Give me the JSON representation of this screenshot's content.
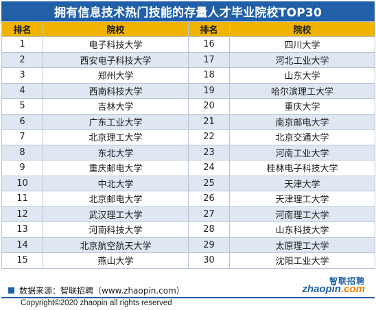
{
  "title": "拥有信息技术热门技能的存量人才毕业院校TOP30",
  "headers": {
    "rank": "排名",
    "school": "院校"
  },
  "rows": [
    {
      "l_rank": "1",
      "l_school": "电子科技大学",
      "r_rank": "16",
      "r_school": "四川大学"
    },
    {
      "l_rank": "2",
      "l_school": "西安电子科技大学",
      "r_rank": "17",
      "r_school": "河北工业大学"
    },
    {
      "l_rank": "3",
      "l_school": "郑州大学",
      "r_rank": "18",
      "r_school": "山东大学"
    },
    {
      "l_rank": "4",
      "l_school": "西南科技大学",
      "r_rank": "19",
      "r_school": "哈尔滨理工大学"
    },
    {
      "l_rank": "5",
      "l_school": "吉林大学",
      "r_rank": "20",
      "r_school": "重庆大学"
    },
    {
      "l_rank": "6",
      "l_school": "广东工业大学",
      "r_rank": "21",
      "r_school": "南京邮电大学"
    },
    {
      "l_rank": "7",
      "l_school": "北京理工大学",
      "r_rank": "22",
      "r_school": "北京交通大学"
    },
    {
      "l_rank": "8",
      "l_school": "东北大学",
      "r_rank": "23",
      "r_school": "河南工业大学"
    },
    {
      "l_rank": "9",
      "l_school": "重庆邮电大学",
      "r_rank": "24",
      "r_school": "桂林电子科技大学"
    },
    {
      "l_rank": "10",
      "l_school": "中北大学",
      "r_rank": "25",
      "r_school": "天津大学"
    },
    {
      "l_rank": "11",
      "l_school": "北京邮电大学",
      "r_rank": "26",
      "r_school": "天津理工大学"
    },
    {
      "l_rank": "12",
      "l_school": "武汉理工大学",
      "r_rank": "27",
      "r_school": "河南理工大学"
    },
    {
      "l_rank": "13",
      "l_school": "河南科技大学",
      "r_rank": "28",
      "r_school": "山东科技大学"
    },
    {
      "l_rank": "14",
      "l_school": "北京航空航天大学",
      "r_rank": "29",
      "r_school": "太原理工大学"
    },
    {
      "l_rank": "15",
      "l_school": "燕山大学",
      "r_rank": "30",
      "r_school": "沈阳工业大学"
    }
  ],
  "footer": {
    "source": "数据来源：智联招聘（www.zhaopin.com）",
    "copyright": "Copyright©2020 zhaopin all rights reserved",
    "logo_cn": "智联招聘",
    "logo_en_main": "zhaopin",
    "logo_en_suffix": ".com"
  },
  "colors": {
    "title_bg": "#2160a8",
    "header_bg": "#f0b400",
    "row_stripe": "#dfe7f2",
    "logo_accent": "#f08300"
  }
}
